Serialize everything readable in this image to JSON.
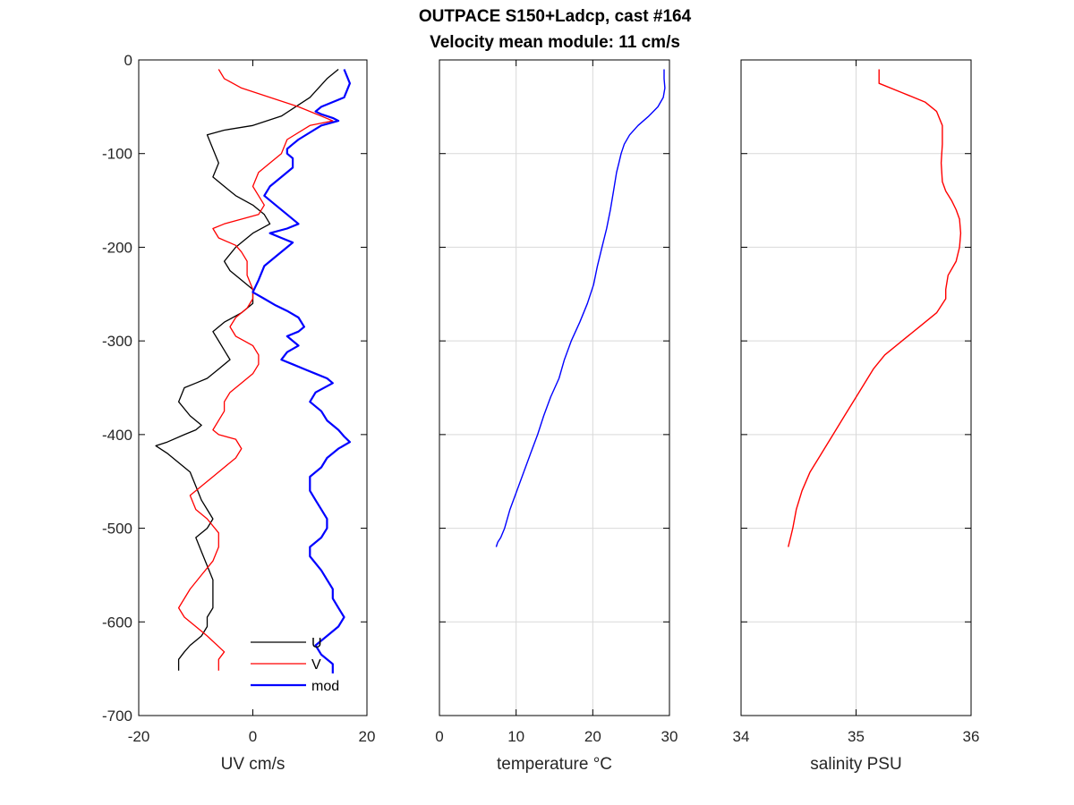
{
  "figure": {
    "title_line1": "OUTPACE S150+Ladcp, cast #164",
    "title_line2": "Velocity mean module:  11 cm/s"
  },
  "chart_data": [
    {
      "type": "line",
      "xlabel": "UV cm/s",
      "ylabel": "",
      "xlim": [
        -20,
        20
      ],
      "ylim": [
        -700,
        0
      ],
      "xticks": [
        -20,
        0,
        20
      ],
      "yticks": [
        0,
        -100,
        -200,
        -300,
        -400,
        -500,
        -600,
        -700
      ],
      "grid": false,
      "legend": "bottom-right",
      "series": [
        {
          "name": "U",
          "color": "#000000",
          "x": [
            15,
            13,
            10,
            5,
            0,
            -5,
            -8,
            -7,
            -6,
            -7,
            -5,
            -3,
            0,
            2,
            3,
            0,
            -3,
            -5,
            -4,
            -2,
            0,
            0,
            0,
            -2,
            -5,
            -7,
            -6,
            -5,
            -4,
            -6,
            -8,
            -10,
            -12,
            -13,
            -11,
            -9,
            -10,
            -12,
            -15,
            -17,
            -15,
            -13,
            -11,
            -10,
            -9,
            -8,
            -7,
            -8,
            -10,
            -9,
            -8,
            -7,
            -7,
            -7,
            -8,
            -8,
            -9,
            -10,
            -11,
            -12,
            -13,
            -13
          ],
          "y": [
            -10,
            -20,
            -40,
            -60,
            -70,
            -75,
            -80,
            -95,
            -110,
            -125,
            -135,
            -145,
            -155,
            -165,
            -175,
            -185,
            -200,
            -215,
            -225,
            -235,
            -245,
            -255,
            -260,
            -270,
            -280,
            -290,
            -300,
            -310,
            -320,
            -330,
            -340,
            -345,
            -350,
            -365,
            -380,
            -390,
            -395,
            -400,
            -408,
            -412,
            -420,
            -430,
            -440,
            -455,
            -470,
            -480,
            -490,
            -500,
            -510,
            -525,
            -540,
            -555,
            -570,
            -585,
            -595,
            -605,
            -615,
            -620,
            -625,
            -632,
            -640,
            -652
          ]
        },
        {
          "name": "V",
          "color": "#ff0000",
          "x": [
            -6,
            -5,
            -2,
            3,
            8,
            12,
            14,
            10,
            6,
            5,
            3,
            1,
            0,
            1,
            2,
            1,
            -2,
            -5,
            -7,
            -6,
            -3,
            -2,
            -1,
            -1,
            0,
            0,
            -1,
            -3,
            -4,
            -3,
            0,
            1,
            1,
            0,
            -2,
            -4,
            -5,
            -5,
            -6,
            -7,
            -6,
            -3,
            -2,
            -3,
            -5,
            -7,
            -9,
            -11,
            -10,
            -8,
            -6,
            -6,
            -7,
            -9,
            -11,
            -12,
            -13,
            -12,
            -10,
            -8,
            -5,
            -6,
            -6
          ],
          "y": [
            -10,
            -20,
            -30,
            -40,
            -50,
            -60,
            -65,
            -70,
            -85,
            -100,
            -110,
            -120,
            -135,
            -145,
            -155,
            -165,
            -170,
            -175,
            -180,
            -190,
            -198,
            -205,
            -215,
            -230,
            -245,
            -255,
            -265,
            -275,
            -285,
            -295,
            -305,
            -315,
            -325,
            -335,
            -345,
            -355,
            -365,
            -375,
            -385,
            -395,
            -400,
            -405,
            -415,
            -425,
            -435,
            -445,
            -455,
            -465,
            -480,
            -490,
            -505,
            -520,
            -535,
            -550,
            -565,
            -575,
            -585,
            -595,
            -605,
            -615,
            -632,
            -640,
            -652
          ]
        },
        {
          "name": "mod",
          "color": "#0000ff",
          "x": [
            16,
            17,
            16,
            12,
            11,
            12,
            14,
            15,
            12,
            8,
            7,
            6,
            6,
            7,
            7,
            5,
            3,
            2,
            4,
            6,
            8,
            6,
            3,
            5,
            7,
            6,
            4,
            2,
            1,
            0,
            2,
            4,
            6,
            8,
            9,
            8,
            6,
            7,
            8,
            6,
            5,
            7,
            9,
            11,
            13,
            14,
            11,
            10,
            12,
            13,
            15,
            16,
            17,
            15,
            13,
            12,
            10,
            10,
            11,
            12,
            13,
            13,
            12,
            10,
            10,
            12,
            13,
            14,
            14,
            15,
            16,
            15,
            13,
            11,
            12,
            14,
            14
          ],
          "y": [
            -10,
            -25,
            -40,
            -50,
            -55,
            -58,
            -62,
            -65,
            -70,
            -85,
            -90,
            -95,
            -100,
            -105,
            -115,
            -125,
            -135,
            -145,
            -155,
            -165,
            -175,
            -180,
            -185,
            -190,
            -195,
            -200,
            -210,
            -220,
            -235,
            -248,
            -255,
            -262,
            -268,
            -275,
            -285,
            -290,
            -295,
            -300,
            -305,
            -312,
            -320,
            -325,
            -330,
            -335,
            -340,
            -345,
            -355,
            -365,
            -375,
            -385,
            -395,
            -402,
            -408,
            -415,
            -425,
            -435,
            -445,
            -460,
            -470,
            -480,
            -490,
            -500,
            -510,
            -520,
            -530,
            -545,
            -555,
            -565,
            -575,
            -585,
            -595,
            -605,
            -615,
            -625,
            -635,
            -645,
            -655
          ]
        }
      ]
    },
    {
      "type": "line",
      "xlabel": "temperature °C",
      "ylabel": "",
      "xlim": [
        0,
        30
      ],
      "ylim": [
        -700,
        0
      ],
      "xticks": [
        0,
        10,
        20,
        30
      ],
      "grid": true,
      "series": [
        {
          "name": "",
          "color": "#0000ff",
          "x": [
            29.3,
            29.3,
            29.4,
            29.2,
            28.5,
            27.3,
            25.9,
            24.8,
            24.1,
            23.7,
            23.4,
            23.1,
            22.7,
            22.3,
            21.8,
            21.2,
            20.6,
            20.1,
            19.3,
            18.3,
            17.2,
            16.3,
            15.6,
            14.5,
            13.6,
            12.8,
            11.9,
            11.0,
            10.1,
            9.2,
            8.5,
            8.0,
            7.6,
            7.4
          ],
          "y": [
            -10,
            -20,
            -30,
            -40,
            -50,
            -60,
            -70,
            -80,
            -90,
            -100,
            -110,
            -120,
            -140,
            -160,
            -180,
            -200,
            -220,
            -240,
            -260,
            -280,
            -300,
            -320,
            -340,
            -360,
            -380,
            -400,
            -420,
            -440,
            -460,
            -480,
            -500,
            -510,
            -515,
            -520
          ]
        }
      ]
    },
    {
      "type": "line",
      "xlabel": "salinity PSU",
      "ylabel": "",
      "xlim": [
        34,
        36
      ],
      "ylim": [
        -700,
        0
      ],
      "xticks": [
        34,
        35,
        36
      ],
      "grid": true,
      "series": [
        {
          "name": "",
          "color": "#ff0000",
          "x": [
            35.2,
            35.2,
            35.2,
            35.4,
            35.6,
            35.7,
            35.75,
            35.75,
            35.74,
            35.75,
            35.78,
            35.83,
            35.87,
            35.9,
            35.91,
            35.9,
            35.87,
            35.8,
            35.78,
            35.78,
            35.7,
            35.55,
            35.4,
            35.25,
            35.15,
            35.0,
            34.9,
            34.8,
            34.7,
            34.6,
            34.53,
            34.48,
            34.45,
            34.43,
            34.41
          ],
          "y": [
            -10,
            -20,
            -25,
            -35,
            -45,
            -55,
            -70,
            -90,
            -110,
            -130,
            -140,
            -150,
            -160,
            -170,
            -185,
            -200,
            -215,
            -230,
            -245,
            -255,
            -270,
            -285,
            -300,
            -315,
            -330,
            -360,
            -380,
            -400,
            -420,
            -440,
            -460,
            -480,
            -500,
            -510,
            -520
          ]
        }
      ]
    }
  ]
}
